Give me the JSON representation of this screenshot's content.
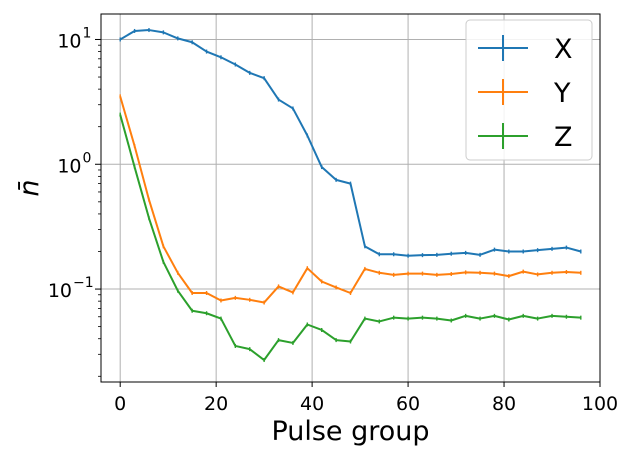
{
  "chart_data": {
    "type": "line",
    "title": "",
    "xlabel": "Pulse group",
    "ylabel": "n̄",
    "xlim": [
      -4,
      100
    ],
    "ylim": [
      0.018,
      16
    ],
    "yscale": "log",
    "grid": true,
    "legend_position": "top-right",
    "error_bars": true,
    "x_ticks": [
      {
        "value": 0,
        "label": "0"
      },
      {
        "value": 20,
        "label": "20"
      },
      {
        "value": 40,
        "label": "40"
      },
      {
        "value": 60,
        "label": "60"
      },
      {
        "value": 80,
        "label": "80"
      },
      {
        "value": 100,
        "label": "100"
      }
    ],
    "y_ticks": [
      {
        "value": 0.1,
        "base": "10",
        "exp": "−1"
      },
      {
        "value": 1,
        "base": "10",
        "exp": "0"
      },
      {
        "value": 10,
        "base": "10",
        "exp": "1"
      }
    ],
    "x": [
      0,
      3,
      6,
      9,
      12,
      15,
      18,
      21,
      24,
      27,
      30,
      33,
      36,
      39,
      42,
      45,
      48,
      51,
      54,
      57,
      60,
      63,
      66,
      69,
      72,
      75,
      78,
      81,
      84,
      87,
      90,
      93,
      96
    ],
    "series": [
      {
        "name": "X",
        "color": "#1f77b4",
        "values": [
          10.0,
          11.7,
          11.9,
          11.4,
          10.2,
          9.5,
          8.0,
          7.2,
          6.3,
          5.4,
          4.9,
          3.3,
          2.8,
          1.7,
          0.95,
          0.75,
          0.7,
          0.22,
          0.19,
          0.19,
          0.185,
          0.187,
          0.188,
          0.192,
          0.195,
          0.188,
          0.207,
          0.2,
          0.2,
          0.205,
          0.21,
          0.215,
          0.2
        ]
      },
      {
        "name": "Y",
        "color": "#ff7f0e",
        "values": [
          3.5,
          1.4,
          0.52,
          0.22,
          0.135,
          0.093,
          0.093,
          0.081,
          0.085,
          0.082,
          0.078,
          0.105,
          0.094,
          0.147,
          0.115,
          0.103,
          0.093,
          0.145,
          0.135,
          0.13,
          0.133,
          0.133,
          0.13,
          0.132,
          0.136,
          0.135,
          0.133,
          0.127,
          0.138,
          0.131,
          0.135,
          0.137,
          0.135
        ]
      },
      {
        "name": "Z",
        "color": "#2ca02c",
        "values": [
          2.5,
          0.95,
          0.37,
          0.165,
          0.097,
          0.067,
          0.064,
          0.058,
          0.035,
          0.033,
          0.027,
          0.039,
          0.037,
          0.052,
          0.047,
          0.039,
          0.038,
          0.058,
          0.055,
          0.059,
          0.058,
          0.059,
          0.058,
          0.056,
          0.061,
          0.058,
          0.061,
          0.057,
          0.061,
          0.058,
          0.061,
          0.06,
          0.059
        ]
      }
    ]
  }
}
